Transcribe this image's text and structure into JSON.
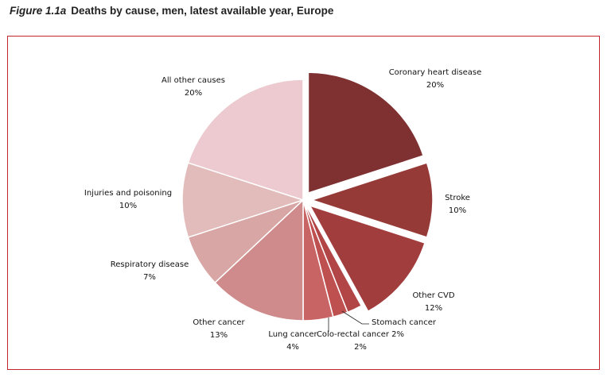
{
  "figure": {
    "number": "Figure 1.1a",
    "title": "Deaths by cause, men, latest available year, Europe"
  },
  "colors": {
    "frame": "#c0282d"
  },
  "chart_data": {
    "type": "pie",
    "title": "Deaths by cause, men, latest available year, Europe",
    "unit": "%",
    "slices": [
      {
        "name": "Coronary heart disease",
        "value": 20,
        "value_label": "20%",
        "color": "#7f3132",
        "exploded": true
      },
      {
        "name": "Stroke",
        "value": 10,
        "value_label": "10%",
        "color": "#963a38",
        "exploded": true
      },
      {
        "name": "Other CVD",
        "value": 12,
        "value_label": "12%",
        "color": "#a23d3e",
        "exploded": true
      },
      {
        "name": "Stomach cancer",
        "value": 2,
        "value_label": "",
        "color": "#b24545",
        "exploded": false
      },
      {
        "name": "Colo-rectal cancer 2%",
        "value": 2,
        "value_label": "2%",
        "color": "#bf5050",
        "exploded": false
      },
      {
        "name": "Lung cancer",
        "value": 4,
        "value_label": "4%",
        "color": "#c96464",
        "exploded": false
      },
      {
        "name": "Other cancer",
        "value": 13,
        "value_label": "13%",
        "color": "#cf8b8b",
        "exploded": false
      },
      {
        "name": "Respiratory disease",
        "value": 7,
        "value_label": "7%",
        "color": "#d8a6a4",
        "exploded": false
      },
      {
        "name": "Injuries and poisoning",
        "value": 10,
        "value_label": "10%",
        "color": "#e2bcbb",
        "exploded": false
      },
      {
        "name": "All other causes",
        "value": 20,
        "value_label": "20%",
        "color": "#eccacf",
        "exploded": false
      }
    ]
  }
}
